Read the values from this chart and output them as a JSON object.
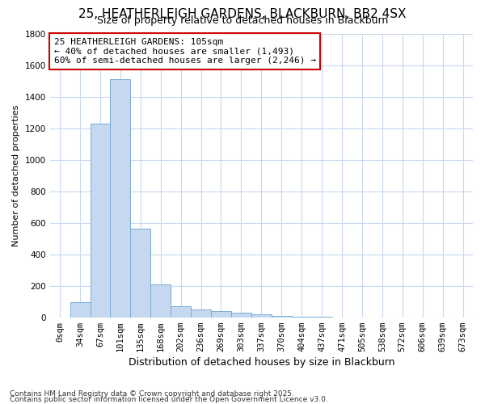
{
  "title1": "25, HEATHERLEIGH GARDENS, BLACKBURN, BB2 4SX",
  "title2": "Size of property relative to detached houses in Blackburn",
  "xlabel": "Distribution of detached houses by size in Blackburn",
  "ylabel": "Number of detached properties",
  "bar_labels": [
    "0sqm",
    "34sqm",
    "67sqm",
    "101sqm",
    "135sqm",
    "168sqm",
    "202sqm",
    "236sqm",
    "269sqm",
    "303sqm",
    "337sqm",
    "370sqm",
    "404sqm",
    "437sqm",
    "471sqm",
    "505sqm",
    "538sqm",
    "572sqm",
    "606sqm",
    "639sqm",
    "673sqm"
  ],
  "bar_values": [
    0,
    97,
    1230,
    1510,
    560,
    210,
    68,
    50,
    40,
    28,
    20,
    8,
    3,
    1,
    0,
    0,
    0,
    0,
    0,
    0,
    0
  ],
  "bar_color": "#c5d8f0",
  "bar_edge_color": "#7aadd4",
  "ylim": [
    0,
    1800
  ],
  "yticks": [
    0,
    200,
    400,
    600,
    800,
    1000,
    1200,
    1400,
    1600,
    1800
  ],
  "annotation_box_text": "25 HEATHERLEIGH GARDENS: 105sqm\n← 40% of detached houses are smaller (1,493)\n60% of semi-detached houses are larger (2,246) →",
  "annotation_box_color": "#cc0000",
  "bg_color": "#ffffff",
  "grid_color": "#c8d8f0",
  "footer1": "Contains HM Land Registry data © Crown copyright and database right 2025.",
  "footer2": "Contains public sector information licensed under the Open Government Licence v3.0.",
  "title_fontsize": 11,
  "subtitle_fontsize": 9,
  "ylabel_fontsize": 8,
  "xlabel_fontsize": 9,
  "tick_fontsize": 7.5,
  "footer_fontsize": 6.5
}
